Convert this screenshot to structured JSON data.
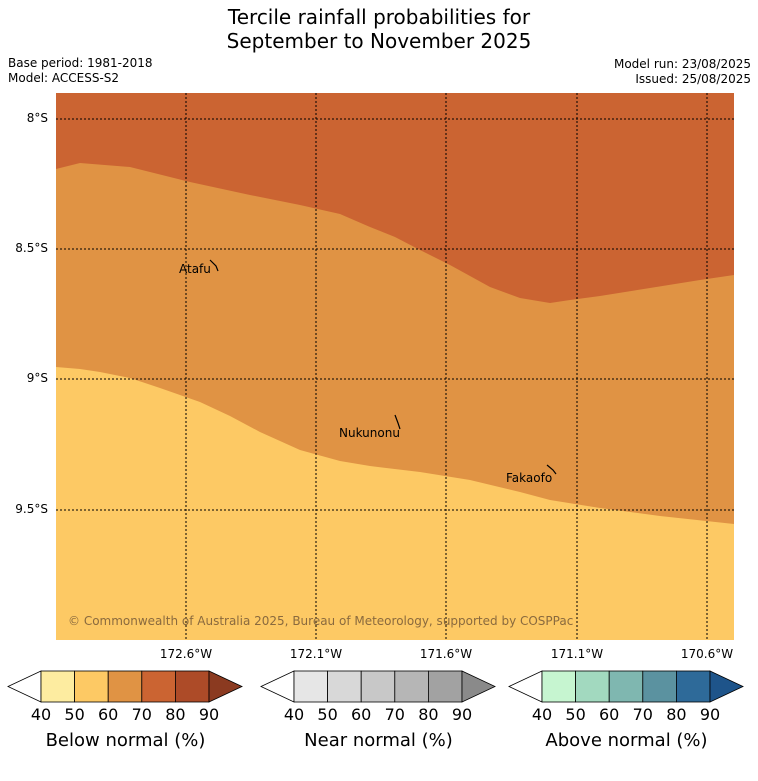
{
  "title_line1": "Tercile rainfall probabilities for",
  "title_line2": "September to November 2025",
  "meta": {
    "base_period": "Base period: 1981-2018",
    "model": "Model: ACCESS-S2",
    "model_run": "Model run: 23/08/2025",
    "issued": "Issued: 25/08/2025"
  },
  "axes": {
    "lat_labels": [
      "8°S",
      "8.5°S",
      "9°S",
      "9.5°S"
    ],
    "lon_labels": [
      "172.6°W",
      "172.1°W",
      "171.6°W",
      "171.1°W",
      "170.6°W"
    ]
  },
  "places": {
    "atafu": "Atafu",
    "nukunonu": "Nukunonu",
    "fakaofo": "Fakaofo"
  },
  "regions": {
    "dark_band": "Below normal 70–80%",
    "mid_band": "Below normal 60–70%",
    "light_band": "Below normal 50–60%"
  },
  "copyright": "© Commonwealth of Australia 2025, Bureau of Meteorology, supported by COSPPac",
  "colorbars": [
    {
      "label": "Below normal (%)",
      "ticks": [
        "40",
        "50",
        "60",
        "70",
        "80",
        "90"
      ],
      "colors": [
        "#ffffff",
        "#fdeca0",
        "#fdc964",
        "#e09344",
        "#cb6432",
        "#ad4b28",
        "#8b3a20"
      ]
    },
    {
      "label": "Near normal (%)",
      "ticks": [
        "40",
        "50",
        "60",
        "70",
        "80",
        "90"
      ],
      "colors": [
        "#ffffff",
        "#e6e6e6",
        "#d8d8d8",
        "#c8c8c8",
        "#b6b6b6",
        "#a2a2a2",
        "#8a8a8a"
      ]
    },
    {
      "label": "Above normal (%)",
      "ticks": [
        "40",
        "50",
        "60",
        "70",
        "80",
        "90"
      ],
      "colors": [
        "#ffffff",
        "#c6f5d0",
        "#a2d9bf",
        "#7fb7b0",
        "#5b92a0",
        "#2e6a99",
        "#1e548a"
      ]
    }
  ],
  "fills": {
    "band_dark": "#cb6432",
    "band_mid": "#e09344",
    "band_light": "#fdc964"
  }
}
